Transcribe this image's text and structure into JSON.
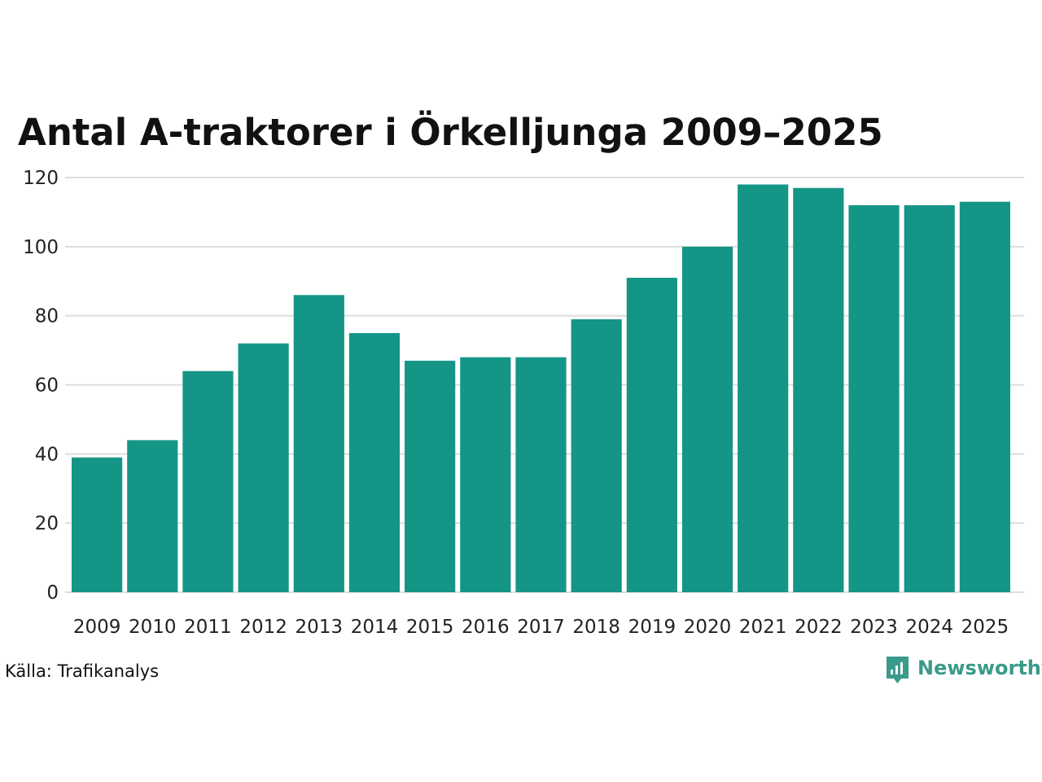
{
  "chart_data": {
    "type": "bar",
    "title": "Antal A-traktorer i Örkelljunga 2009–2025",
    "categories": [
      "2009",
      "2010",
      "2011",
      "2012",
      "2013",
      "2014",
      "2015",
      "2016",
      "2017",
      "2018",
      "2019",
      "2020",
      "2021",
      "2022",
      "2023",
      "2024",
      "2025"
    ],
    "values": [
      39,
      44,
      64,
      72,
      86,
      75,
      67,
      68,
      68,
      79,
      91,
      100,
      118,
      117,
      112,
      112,
      113
    ],
    "xlabel": "",
    "ylabel": "",
    "ylim": [
      0,
      120
    ],
    "yticks": [
      0,
      20,
      40,
      60,
      80,
      100,
      120
    ],
    "grid": true,
    "colors": {
      "bar": "#149586",
      "grid": "#dddddd",
      "brand": "#3a9a8b"
    }
  },
  "footer": {
    "source": "Källa: Trafikanalys",
    "brand": "Newsworthy"
  },
  "icons": {
    "brand_logo": "newsworthy-logo-icon"
  }
}
